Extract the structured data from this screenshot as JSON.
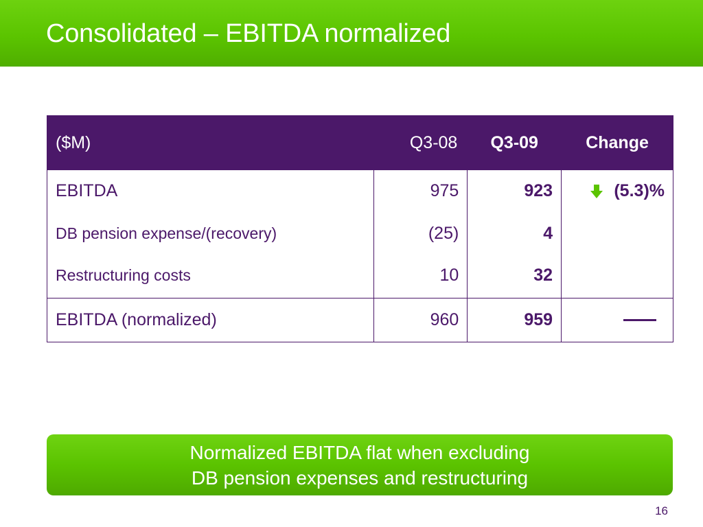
{
  "title": "Consolidated – EBITDA normalized",
  "table": {
    "headers": {
      "label": "($M)",
      "q308": "Q3-08",
      "q309": "Q3-09",
      "change": "Change"
    },
    "rows": [
      {
        "label": "EBITDA",
        "q308": "975",
        "q309": "923",
        "change": "(5.3)%",
        "change_icon": "down-arrow-icon"
      },
      {
        "label": "DB pension expense/(recovery)",
        "q308": "(25)",
        "q309": "4",
        "change": ""
      },
      {
        "label": "Restructuring costs",
        "q308": "10",
        "q309": "32",
        "change": ""
      },
      {
        "label": "EBITDA (normalized)",
        "q308": "960",
        "q309": "959",
        "change_icon": "dash-icon"
      }
    ]
  },
  "callout": {
    "line1": "Normalized EBITDA flat when excluding",
    "line2": "DB pension expenses and restructuring"
  },
  "page_number": "16",
  "colors": {
    "brand_green": "#5bc400",
    "brand_purple": "#4b1869"
  }
}
